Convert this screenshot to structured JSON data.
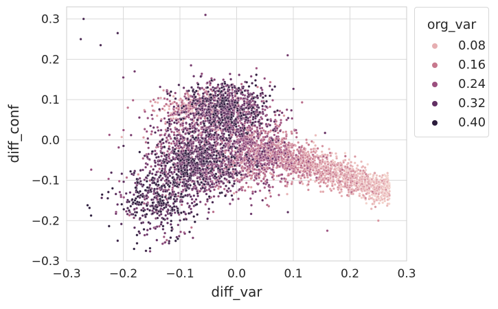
{
  "chart_data": {
    "type": "scatter",
    "title": "",
    "xlabel": "diff_var",
    "ylabel": "diff_conf",
    "xlim": [
      -0.3,
      0.3
    ],
    "ylim": [
      -0.3,
      0.33
    ],
    "xticks": [
      "−0.3",
      "−0.2",
      "−0.1",
      "0.0",
      "0.1",
      "0.2",
      "0.3"
    ],
    "yticks": [
      "−0.3",
      "−0.2",
      "−0.1",
      "0.0",
      "0.1",
      "0.2",
      "0.3"
    ],
    "grid": true,
    "legend": {
      "title": "org_var",
      "placement": "outside right",
      "entries": [
        {
          "label": "0.08",
          "color": "#e6aeb1"
        },
        {
          "label": "0.16",
          "color": "#c7788d"
        },
        {
          "label": "0.24",
          "color": "#9b4f7f"
        },
        {
          "label": "0.32",
          "color": "#622f63"
        },
        {
          "label": "0.40",
          "color": "#2c1c3c"
        }
      ]
    },
    "series": [
      {
        "clusters_description": "dense point cloud",
        "clusters": [
          {
            "cx": -0.02,
            "cy": 0.08,
            "sx": 0.04,
            "sy": 0.035,
            "n": 900,
            "org_var": 0.3
          },
          {
            "cx": -0.07,
            "cy": -0.06,
            "sx": 0.04,
            "sy": 0.04,
            "n": 1000,
            "org_var": 0.3
          },
          {
            "cx": -0.14,
            "cy": -0.15,
            "sx": 0.035,
            "sy": 0.04,
            "n": 450,
            "org_var": 0.34
          },
          {
            "cx": -0.04,
            "cy": 0.0,
            "sx": 0.06,
            "sy": 0.05,
            "n": 700,
            "org_var": 0.24
          },
          {
            "cx": 0.03,
            "cy": -0.05,
            "sx": 0.04,
            "sy": 0.04,
            "n": 500,
            "org_var": 0.2
          },
          {
            "cx": -0.08,
            "cy": 0.08,
            "sx": 0.03,
            "sy": 0.02,
            "n": 250,
            "org_var": 0.12
          }
        ],
        "band": {
          "x_from": 0.0,
          "x_to": 0.27,
          "y_at_x0": 0.0,
          "slope": -0.47,
          "spread": 0.025,
          "n": 1600
        },
        "outliers": [
          {
            "x": -0.27,
            "y": 0.3,
            "org_var": 0.36
          },
          {
            "x": -0.275,
            "y": 0.25,
            "org_var": 0.36
          },
          {
            "x": -0.24,
            "y": 0.235,
            "org_var": 0.36
          },
          {
            "x": -0.21,
            "y": 0.265,
            "org_var": 0.36
          },
          {
            "x": -0.055,
            "y": 0.31,
            "org_var": 0.3
          },
          {
            "x": -0.18,
            "y": 0.17,
            "org_var": 0.3
          },
          {
            "x": -0.2,
            "y": 0.155,
            "org_var": 0.3
          },
          {
            "x": 0.09,
            "y": 0.21,
            "org_var": 0.3
          },
          {
            "x": -0.21,
            "y": -0.25,
            "org_var": 0.38
          },
          {
            "x": -0.16,
            "y": -0.275,
            "org_var": 0.38
          },
          {
            "x": 0.16,
            "y": -0.225,
            "org_var": 0.24
          },
          {
            "x": 0.25,
            "y": -0.2,
            "org_var": 0.12
          }
        ]
      }
    ]
  }
}
